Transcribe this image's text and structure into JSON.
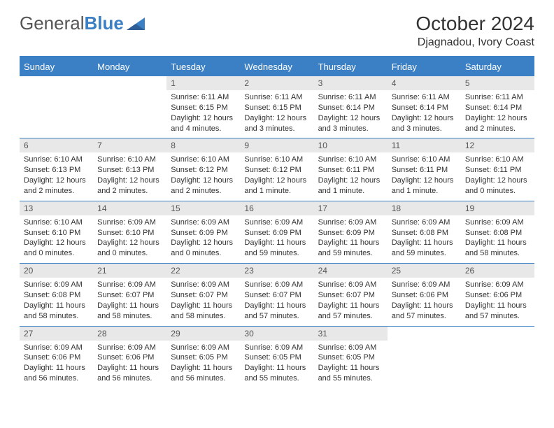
{
  "logo": {
    "text1": "General",
    "text2": "Blue"
  },
  "title": "October 2024",
  "location": "Djagnadou, Ivory Coast",
  "colors": {
    "header_bg": "#3b7fc4",
    "header_text": "#ffffff",
    "daynum_bg": "#e8e8e8",
    "border": "#3b7fc4",
    "text": "#333333"
  },
  "weekdays": [
    "Sunday",
    "Monday",
    "Tuesday",
    "Wednesday",
    "Thursday",
    "Friday",
    "Saturday"
  ],
  "weeks": [
    [
      null,
      null,
      {
        "n": "1",
        "sr": "Sunrise: 6:11 AM",
        "ss": "Sunset: 6:15 PM",
        "dl": "Daylight: 12 hours and 4 minutes."
      },
      {
        "n": "2",
        "sr": "Sunrise: 6:11 AM",
        "ss": "Sunset: 6:15 PM",
        "dl": "Daylight: 12 hours and 3 minutes."
      },
      {
        "n": "3",
        "sr": "Sunrise: 6:11 AM",
        "ss": "Sunset: 6:14 PM",
        "dl": "Daylight: 12 hours and 3 minutes."
      },
      {
        "n": "4",
        "sr": "Sunrise: 6:11 AM",
        "ss": "Sunset: 6:14 PM",
        "dl": "Daylight: 12 hours and 3 minutes."
      },
      {
        "n": "5",
        "sr": "Sunrise: 6:11 AM",
        "ss": "Sunset: 6:14 PM",
        "dl": "Daylight: 12 hours and 2 minutes."
      }
    ],
    [
      {
        "n": "6",
        "sr": "Sunrise: 6:10 AM",
        "ss": "Sunset: 6:13 PM",
        "dl": "Daylight: 12 hours and 2 minutes."
      },
      {
        "n": "7",
        "sr": "Sunrise: 6:10 AM",
        "ss": "Sunset: 6:13 PM",
        "dl": "Daylight: 12 hours and 2 minutes."
      },
      {
        "n": "8",
        "sr": "Sunrise: 6:10 AM",
        "ss": "Sunset: 6:12 PM",
        "dl": "Daylight: 12 hours and 2 minutes."
      },
      {
        "n": "9",
        "sr": "Sunrise: 6:10 AM",
        "ss": "Sunset: 6:12 PM",
        "dl": "Daylight: 12 hours and 1 minute."
      },
      {
        "n": "10",
        "sr": "Sunrise: 6:10 AM",
        "ss": "Sunset: 6:11 PM",
        "dl": "Daylight: 12 hours and 1 minute."
      },
      {
        "n": "11",
        "sr": "Sunrise: 6:10 AM",
        "ss": "Sunset: 6:11 PM",
        "dl": "Daylight: 12 hours and 1 minute."
      },
      {
        "n": "12",
        "sr": "Sunrise: 6:10 AM",
        "ss": "Sunset: 6:11 PM",
        "dl": "Daylight: 12 hours and 0 minutes."
      }
    ],
    [
      {
        "n": "13",
        "sr": "Sunrise: 6:10 AM",
        "ss": "Sunset: 6:10 PM",
        "dl": "Daylight: 12 hours and 0 minutes."
      },
      {
        "n": "14",
        "sr": "Sunrise: 6:09 AM",
        "ss": "Sunset: 6:10 PM",
        "dl": "Daylight: 12 hours and 0 minutes."
      },
      {
        "n": "15",
        "sr": "Sunrise: 6:09 AM",
        "ss": "Sunset: 6:09 PM",
        "dl": "Daylight: 12 hours and 0 minutes."
      },
      {
        "n": "16",
        "sr": "Sunrise: 6:09 AM",
        "ss": "Sunset: 6:09 PM",
        "dl": "Daylight: 11 hours and 59 minutes."
      },
      {
        "n": "17",
        "sr": "Sunrise: 6:09 AM",
        "ss": "Sunset: 6:09 PM",
        "dl": "Daylight: 11 hours and 59 minutes."
      },
      {
        "n": "18",
        "sr": "Sunrise: 6:09 AM",
        "ss": "Sunset: 6:08 PM",
        "dl": "Daylight: 11 hours and 59 minutes."
      },
      {
        "n": "19",
        "sr": "Sunrise: 6:09 AM",
        "ss": "Sunset: 6:08 PM",
        "dl": "Daylight: 11 hours and 58 minutes."
      }
    ],
    [
      {
        "n": "20",
        "sr": "Sunrise: 6:09 AM",
        "ss": "Sunset: 6:08 PM",
        "dl": "Daylight: 11 hours and 58 minutes."
      },
      {
        "n": "21",
        "sr": "Sunrise: 6:09 AM",
        "ss": "Sunset: 6:07 PM",
        "dl": "Daylight: 11 hours and 58 minutes."
      },
      {
        "n": "22",
        "sr": "Sunrise: 6:09 AM",
        "ss": "Sunset: 6:07 PM",
        "dl": "Daylight: 11 hours and 58 minutes."
      },
      {
        "n": "23",
        "sr": "Sunrise: 6:09 AM",
        "ss": "Sunset: 6:07 PM",
        "dl": "Daylight: 11 hours and 57 minutes."
      },
      {
        "n": "24",
        "sr": "Sunrise: 6:09 AM",
        "ss": "Sunset: 6:07 PM",
        "dl": "Daylight: 11 hours and 57 minutes."
      },
      {
        "n": "25",
        "sr": "Sunrise: 6:09 AM",
        "ss": "Sunset: 6:06 PM",
        "dl": "Daylight: 11 hours and 57 minutes."
      },
      {
        "n": "26",
        "sr": "Sunrise: 6:09 AM",
        "ss": "Sunset: 6:06 PM",
        "dl": "Daylight: 11 hours and 57 minutes."
      }
    ],
    [
      {
        "n": "27",
        "sr": "Sunrise: 6:09 AM",
        "ss": "Sunset: 6:06 PM",
        "dl": "Daylight: 11 hours and 56 minutes."
      },
      {
        "n": "28",
        "sr": "Sunrise: 6:09 AM",
        "ss": "Sunset: 6:06 PM",
        "dl": "Daylight: 11 hours and 56 minutes."
      },
      {
        "n": "29",
        "sr": "Sunrise: 6:09 AM",
        "ss": "Sunset: 6:05 PM",
        "dl": "Daylight: 11 hours and 56 minutes."
      },
      {
        "n": "30",
        "sr": "Sunrise: 6:09 AM",
        "ss": "Sunset: 6:05 PM",
        "dl": "Daylight: 11 hours and 55 minutes."
      },
      {
        "n": "31",
        "sr": "Sunrise: 6:09 AM",
        "ss": "Sunset: 6:05 PM",
        "dl": "Daylight: 11 hours and 55 minutes."
      },
      null,
      null
    ]
  ]
}
